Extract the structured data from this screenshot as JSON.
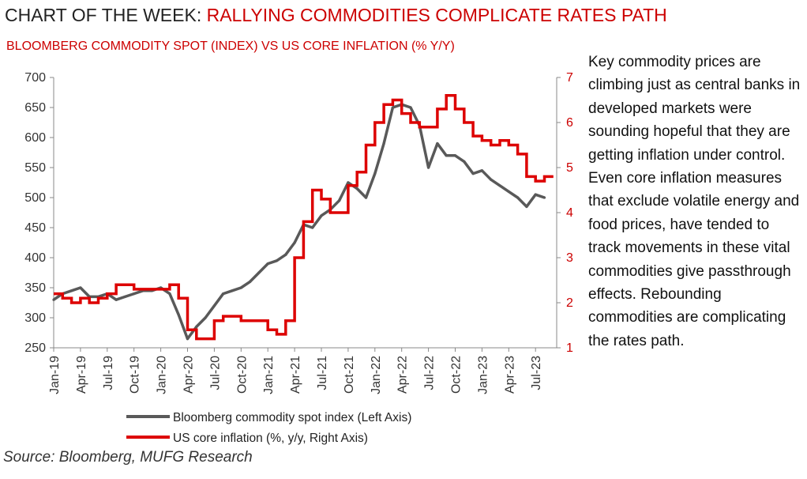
{
  "header": {
    "title_prefix": "CHART OF THE WEEK: ",
    "title_highlight": "RALLYING COMMODITIES COMPLICATE RATES PATH",
    "subtitle": "BLOOMBERG COMMODITY SPOT (INDEX) VS US CORE INFLATION (% Y/Y)"
  },
  "commentary": "Key commodity prices are climbing just as central banks in developed markets were sounding hopeful that they are getting inflation under control. Even core inflation measures that exclude volatile energy and food prices, have tended to track movements in these vital commodities give passthrough effects. Rebounding commodities are complicating the rates path.",
  "source": "Source: Bloomberg, MUFG Research",
  "colors": {
    "commodity": "#595959",
    "inflation": "#dd0000",
    "accent": "#cc0000"
  },
  "chart_data": {
    "type": "line",
    "x_ticks": [
      "Jan-19",
      "Apr-19",
      "Jul-19",
      "Oct-19",
      "Jan-20",
      "Apr-20",
      "Jul-20",
      "Oct-20",
      "Jan-21",
      "Apr-21",
      "Jul-21",
      "Oct-21",
      "Jan-22",
      "Apr-22",
      "Jul-22",
      "Oct-22",
      "Jan-23",
      "Apr-23",
      "Jul-23"
    ],
    "left_axis": {
      "min": 250,
      "max": 700,
      "ticks": [
        250,
        300,
        350,
        400,
        450,
        500,
        550,
        600,
        650,
        700
      ]
    },
    "right_axis": {
      "min": 1,
      "max": 7,
      "ticks": [
        1,
        2,
        3,
        4,
        5,
        6,
        7
      ]
    },
    "legend_placement": "bottom",
    "series": [
      {
        "name": "Bloomberg commodity spot index (Left Axis)",
        "axis": "left",
        "x": [
          "2019-01",
          "2019-02",
          "2019-03",
          "2019-04",
          "2019-05",
          "2019-06",
          "2019-07",
          "2019-08",
          "2019-09",
          "2019-10",
          "2019-11",
          "2019-12",
          "2020-01",
          "2020-02",
          "2020-03",
          "2020-04",
          "2020-05",
          "2020-06",
          "2020-07",
          "2020-08",
          "2020-09",
          "2020-10",
          "2020-11",
          "2020-12",
          "2021-01",
          "2021-02",
          "2021-03",
          "2021-04",
          "2021-05",
          "2021-06",
          "2021-07",
          "2021-08",
          "2021-09",
          "2021-10",
          "2021-11",
          "2021-12",
          "2022-01",
          "2022-02",
          "2022-03",
          "2022-04",
          "2022-05",
          "2022-06",
          "2022-07",
          "2022-08",
          "2022-09",
          "2022-10",
          "2022-11",
          "2022-12",
          "2023-01",
          "2023-02",
          "2023-03",
          "2023-04",
          "2023-05",
          "2023-06",
          "2023-07",
          "2023-08"
        ],
        "values": [
          330,
          340,
          345,
          350,
          335,
          335,
          340,
          330,
          335,
          340,
          345,
          345,
          350,
          340,
          305,
          265,
          285,
          300,
          320,
          340,
          345,
          350,
          360,
          375,
          390,
          395,
          405,
          425,
          455,
          450,
          470,
          480,
          495,
          525,
          515,
          500,
          540,
          590,
          650,
          655,
          650,
          620,
          550,
          590,
          570,
          570,
          560,
          540,
          545,
          530,
          520,
          510,
          500,
          485,
          505,
          500
        ]
      },
      {
        "name": "US core inflation (%, y/y, Right Axis)",
        "axis": "right",
        "x": [
          "2019-01",
          "2019-02",
          "2019-03",
          "2019-04",
          "2019-05",
          "2019-06",
          "2019-07",
          "2019-08",
          "2019-09",
          "2019-10",
          "2019-11",
          "2019-12",
          "2020-01",
          "2020-02",
          "2020-03",
          "2020-04",
          "2020-05",
          "2020-06",
          "2020-07",
          "2020-08",
          "2020-09",
          "2020-10",
          "2020-11",
          "2020-12",
          "2021-01",
          "2021-02",
          "2021-03",
          "2021-04",
          "2021-05",
          "2021-06",
          "2021-07",
          "2021-08",
          "2021-09",
          "2021-10",
          "2021-11",
          "2021-12",
          "2022-01",
          "2022-02",
          "2022-03",
          "2022-04",
          "2022-05",
          "2022-06",
          "2022-07",
          "2022-08",
          "2022-09",
          "2022-10",
          "2022-11",
          "2022-12",
          "2023-01",
          "2023-02",
          "2023-03",
          "2023-04",
          "2023-05",
          "2023-06",
          "2023-07",
          "2023-08"
        ],
        "values": [
          2.2,
          2.1,
          2.0,
          2.1,
          2.0,
          2.1,
          2.2,
          2.4,
          2.4,
          2.3,
          2.3,
          2.3,
          2.3,
          2.4,
          2.1,
          1.4,
          1.2,
          1.2,
          1.6,
          1.7,
          1.7,
          1.6,
          1.6,
          1.6,
          1.4,
          1.3,
          1.6,
          3.0,
          3.8,
          4.5,
          4.3,
          4.0,
          4.0,
          4.6,
          4.9,
          5.5,
          6.0,
          6.4,
          6.5,
          6.2,
          6.0,
          5.9,
          5.9,
          6.3,
          6.6,
          6.3,
          6.0,
          5.7,
          5.6,
          5.5,
          5.6,
          5.5,
          5.3,
          4.8,
          4.7,
          4.8
        ]
      }
    ]
  }
}
